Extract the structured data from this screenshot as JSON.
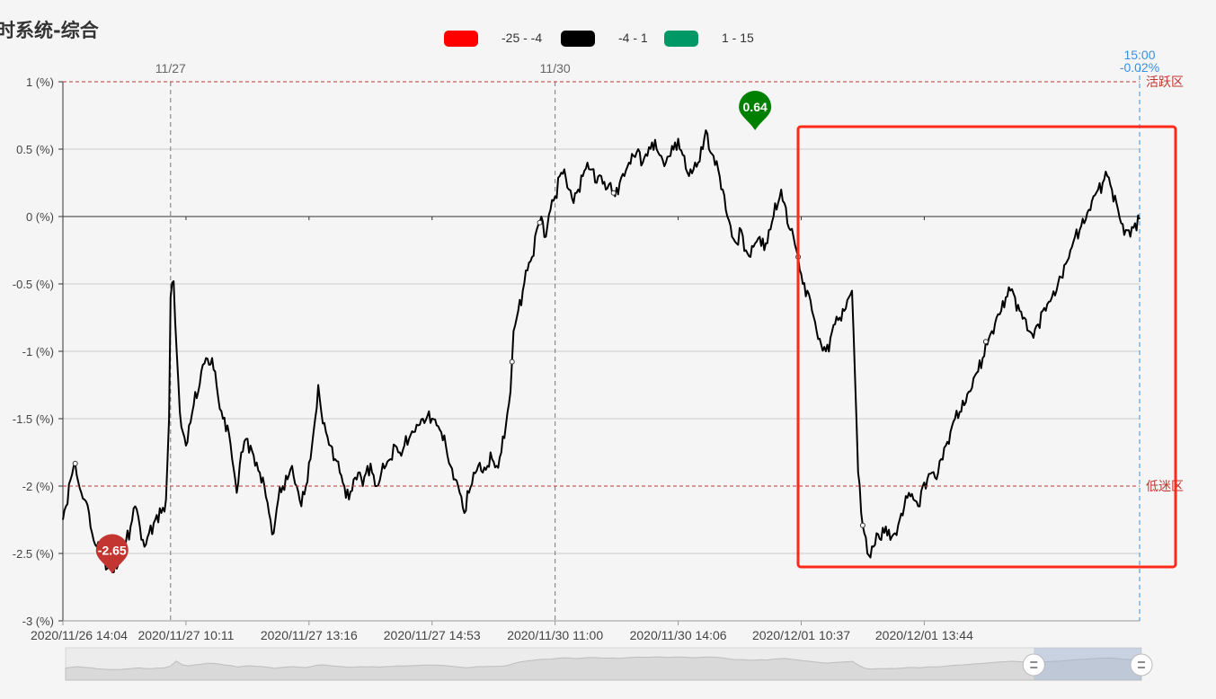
{
  "title": "时系统-综合",
  "legend": [
    {
      "label": "-25 - -4",
      "color": "#ff0000"
    },
    {
      "label": "-4 - 1",
      "color": "#000000"
    },
    {
      "label": "1 - 15",
      "color": "#009966"
    }
  ],
  "chart_data": {
    "type": "line",
    "ylim": [
      -3,
      1
    ],
    "y_ticks": [
      -3,
      -2.5,
      -2,
      -1.5,
      -1,
      -0.5,
      0,
      0.5,
      1
    ],
    "y_tick_labels": [
      "-3 (%)",
      "-2.5 (%)",
      "-2 (%)",
      "-1.5 (%)",
      "-1 (%)",
      "-0.5 (%)",
      "0 (%)",
      "0.5 (%)",
      "1 (%)"
    ],
    "x_tick_labels": [
      "2020/11/26 14:04",
      "2020/11/27 10:11",
      "2020/11/27 13:16",
      "2020/11/27 14:53",
      "2020/11/30 11:00",
      "2020/11/30 14:06",
      "2020/12/01 10:37",
      "2020/12/01 13:44"
    ],
    "day_markers": [
      {
        "label": "11/27",
        "index": 70
      },
      {
        "label": "11/30",
        "index": 320
      }
    ],
    "thresholds": [
      {
        "value": 1,
        "label": "活跃区"
      },
      {
        "value": -2,
        "label": "低迷区"
      }
    ],
    "cursor": {
      "time": "15:00",
      "value": "-0.02%"
    },
    "markers": [
      {
        "value": -2.65,
        "label": "-2.65",
        "color": "#c23531",
        "index": 32
      },
      {
        "value": 0.64,
        "label": "0.64",
        "color": "#008000",
        "index": 450
      }
    ],
    "series_color": "#000000",
    "series": [
      {
        "knots": [
          [
            0,
            -2.25
          ],
          [
            2,
            -2.15
          ],
          [
            5,
            -1.95
          ],
          [
            7,
            -1.85
          ],
          [
            9,
            -1.92
          ],
          [
            12,
            -2.05
          ],
          [
            14,
            -2.1
          ],
          [
            17,
            -2.2
          ],
          [
            19,
            -2.35
          ],
          [
            22,
            -2.45
          ],
          [
            26,
            -2.55
          ],
          [
            30,
            -2.6
          ],
          [
            33,
            -2.64
          ],
          [
            36,
            -2.58
          ],
          [
            40,
            -2.45
          ],
          [
            44,
            -2.3
          ],
          [
            47,
            -2.15
          ],
          [
            50,
            -2.3
          ],
          [
            53,
            -2.45
          ],
          [
            56,
            -2.35
          ],
          [
            60,
            -2.25
          ],
          [
            64,
            -2.2
          ],
          [
            67,
            -2.1
          ],
          [
            69,
            -1.5
          ],
          [
            70,
            -0.6
          ],
          [
            72,
            -0.48
          ],
          [
            74,
            -1.0
          ],
          [
            76,
            -1.45
          ],
          [
            78,
            -1.6
          ],
          [
            80,
            -1.7
          ],
          [
            82,
            -1.55
          ],
          [
            85,
            -1.4
          ],
          [
            88,
            -1.3
          ],
          [
            91,
            -1.1
          ],
          [
            93,
            -1.05
          ],
          [
            95,
            -1.1
          ],
          [
            97,
            -1.05
          ],
          [
            99,
            -1.15
          ],
          [
            101,
            -1.35
          ],
          [
            104,
            -1.5
          ],
          [
            107,
            -1.55
          ],
          [
            110,
            -1.8
          ],
          [
            113,
            -2.05
          ],
          [
            116,
            -1.75
          ],
          [
            119,
            -1.65
          ],
          [
            122,
            -1.7
          ],
          [
            125,
            -1.85
          ],
          [
            128,
            -1.9
          ],
          [
            131,
            -2.0
          ],
          [
            134,
            -2.2
          ],
          [
            137,
            -2.35
          ],
          [
            140,
            -2.1
          ],
          [
            143,
            -2.0
          ],
          [
            146,
            -1.95
          ],
          [
            149,
            -1.85
          ],
          [
            152,
            -2.0
          ],
          [
            155,
            -2.15
          ],
          [
            158,
            -2.0
          ],
          [
            161,
            -1.8
          ],
          [
            164,
            -1.5
          ],
          [
            166,
            -1.25
          ],
          [
            168,
            -1.45
          ],
          [
            171,
            -1.6
          ],
          [
            174,
            -1.7
          ],
          [
            177,
            -1.8
          ],
          [
            180,
            -1.9
          ],
          [
            183,
            -2.0
          ],
          [
            186,
            -2.1
          ],
          [
            189,
            -1.95
          ],
          [
            192,
            -1.9
          ],
          [
            195,
            -2.0
          ],
          [
            198,
            -1.85
          ],
          [
            201,
            -1.9
          ],
          [
            204,
            -2.0
          ],
          [
            207,
            -1.9
          ],
          [
            210,
            -1.85
          ],
          [
            213,
            -1.8
          ],
          [
            216,
            -1.7
          ],
          [
            219,
            -1.75
          ],
          [
            222,
            -1.7
          ],
          [
            225,
            -1.65
          ],
          [
            228,
            -1.6
          ],
          [
            231,
            -1.55
          ],
          [
            234,
            -1.5
          ],
          [
            237,
            -1.48
          ],
          [
            240,
            -1.5
          ],
          [
            243,
            -1.55
          ],
          [
            246,
            -1.6
          ],
          [
            249,
            -1.7
          ],
          [
            252,
            -1.85
          ],
          [
            255,
            -1.95
          ],
          [
            258,
            -2.05
          ],
          [
            261,
            -2.2
          ],
          [
            264,
            -2.05
          ],
          [
            267,
            -1.9
          ],
          [
            270,
            -1.85
          ],
          [
            273,
            -1.9
          ],
          [
            276,
            -1.85
          ],
          [
            279,
            -1.8
          ],
          [
            282,
            -1.85
          ],
          [
            285,
            -1.75
          ],
          [
            288,
            -1.55
          ],
          [
            291,
            -1.3
          ],
          [
            293,
            -0.85
          ],
          [
            296,
            -0.7
          ],
          [
            299,
            -0.55
          ],
          [
            302,
            -0.4
          ],
          [
            305,
            -0.3
          ],
          [
            308,
            -0.1
          ],
          [
            311,
            0.0
          ],
          [
            314,
            -0.15
          ],
          [
            317,
            0.05
          ],
          [
            320,
            0.15
          ],
          [
            323,
            0.3
          ],
          [
            326,
            0.35
          ],
          [
            329,
            0.2
          ],
          [
            332,
            0.1
          ],
          [
            335,
            0.2
          ],
          [
            338,
            0.3
          ],
          [
            341,
            0.4
          ],
          [
            344,
            0.35
          ],
          [
            347,
            0.25
          ],
          [
            350,
            0.3
          ],
          [
            353,
            0.2
          ],
          [
            356,
            0.25
          ],
          [
            359,
            0.15
          ],
          [
            362,
            0.25
          ],
          [
            365,
            0.3
          ],
          [
            368,
            0.4
          ],
          [
            371,
            0.45
          ],
          [
            374,
            0.5
          ],
          [
            377,
            0.4
          ],
          [
            380,
            0.45
          ],
          [
            383,
            0.55
          ],
          [
            386,
            0.5
          ],
          [
            389,
            0.45
          ],
          [
            392,
            0.4
          ],
          [
            395,
            0.45
          ],
          [
            398,
            0.55
          ],
          [
            401,
            0.5
          ],
          [
            404,
            0.45
          ],
          [
            407,
            0.3
          ],
          [
            410,
            0.35
          ],
          [
            413,
            0.4
          ],
          [
            416,
            0.5
          ],
          [
            418,
            0.64
          ],
          [
            420,
            0.5
          ],
          [
            423,
            0.45
          ],
          [
            426,
            0.35
          ],
          [
            429,
            0.2
          ],
          [
            432,
            0.0
          ],
          [
            435,
            -0.15
          ],
          [
            438,
            -0.2
          ],
          [
            441,
            -0.1
          ],
          [
            444,
            -0.25
          ],
          [
            447,
            -0.3
          ],
          [
            450,
            -0.2
          ],
          [
            453,
            -0.15
          ],
          [
            456,
            -0.25
          ],
          [
            459,
            -0.1
          ],
          [
            462,
            0.0
          ],
          [
            465,
            0.1
          ],
          [
            467,
            0.2
          ],
          [
            469,
            0.1
          ],
          [
            471,
            -0.05
          ],
          [
            473,
            -0.1
          ],
          [
            475,
            -0.15
          ],
          [
            478,
            -0.3
          ],
          [
            481,
            -0.5
          ],
          [
            484,
            -0.55
          ],
          [
            487,
            -0.7
          ],
          [
            490,
            -0.85
          ],
          [
            493,
            -0.95
          ],
          [
            496,
            -1.0
          ],
          [
            499,
            -0.9
          ],
          [
            502,
            -0.8
          ],
          [
            505,
            -0.75
          ],
          [
            508,
            -0.7
          ],
          [
            511,
            -0.6
          ],
          [
            513,
            -0.55
          ],
          [
            515,
            -1.2
          ],
          [
            517,
            -1.9
          ],
          [
            519,
            -2.2
          ],
          [
            521,
            -2.35
          ],
          [
            523,
            -2.5
          ],
          [
            525,
            -2.53
          ],
          [
            527,
            -2.45
          ],
          [
            529,
            -2.35
          ],
          [
            532,
            -2.4
          ],
          [
            535,
            -2.3
          ],
          [
            538,
            -2.4
          ],
          [
            541,
            -2.35
          ],
          [
            544,
            -2.25
          ],
          [
            547,
            -2.15
          ],
          [
            550,
            -2.05
          ],
          [
            553,
            -2.1
          ],
          [
            556,
            -2.15
          ],
          [
            559,
            -2.0
          ],
          [
            562,
            -1.95
          ],
          [
            565,
            -1.9
          ],
          [
            568,
            -1.95
          ],
          [
            571,
            -1.8
          ],
          [
            574,
            -1.7
          ],
          [
            577,
            -1.6
          ],
          [
            580,
            -1.5
          ],
          [
            583,
            -1.45
          ],
          [
            586,
            -1.4
          ],
          [
            589,
            -1.3
          ],
          [
            592,
            -1.2
          ],
          [
            595,
            -1.15
          ],
          [
            598,
            -1.05
          ],
          [
            601,
            -0.95
          ],
          [
            604,
            -0.85
          ],
          [
            607,
            -0.75
          ],
          [
            610,
            -0.7
          ],
          [
            613,
            -0.6
          ],
          [
            616,
            -0.55
          ],
          [
            619,
            -0.6
          ],
          [
            622,
            -0.7
          ],
          [
            625,
            -0.75
          ],
          [
            628,
            -0.85
          ],
          [
            631,
            -0.9
          ],
          [
            634,
            -0.8
          ],
          [
            637,
            -0.7
          ],
          [
            640,
            -0.65
          ],
          [
            643,
            -0.6
          ],
          [
            646,
            -0.55
          ],
          [
            649,
            -0.45
          ],
          [
            652,
            -0.35
          ],
          [
            655,
            -0.25
          ],
          [
            658,
            -0.15
          ],
          [
            661,
            -0.1
          ],
          [
            664,
            -0.05
          ],
          [
            667,
            0.05
          ],
          [
            670,
            0.15
          ],
          [
            673,
            0.2
          ],
          [
            676,
            0.25
          ],
          [
            679,
            0.3
          ],
          [
            682,
            0.2
          ],
          [
            685,
            0.1
          ],
          [
            688,
            -0.05
          ],
          [
            691,
            -0.1
          ],
          [
            694,
            -0.15
          ],
          [
            697,
            -0.05
          ],
          [
            700,
            -0.02
          ]
        ]
      }
    ],
    "x_count": 701,
    "x_tick_indices": [
      0,
      80,
      160,
      240,
      320,
      400,
      480,
      560
    ]
  },
  "data_zoom": {
    "range": [
      0.9,
      1.0
    ]
  }
}
